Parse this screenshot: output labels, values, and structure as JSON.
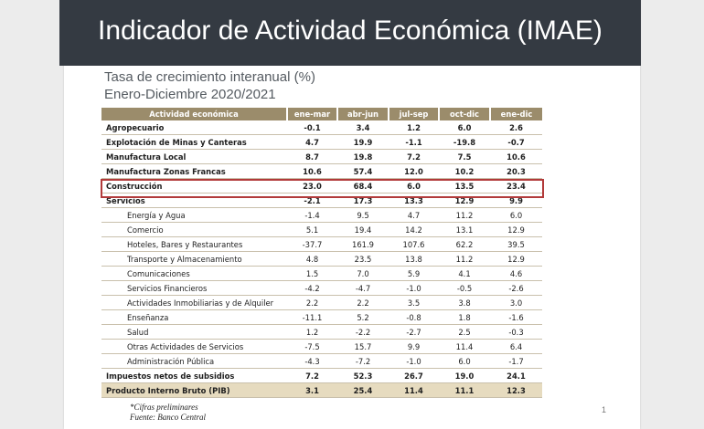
{
  "title": "Indicador de Actividad Económica (IMAE)",
  "subtitle_1": "Tasa de crecimiento interanual (%)",
  "subtitle_2": "Enero-Diciembre 2020/2021",
  "table": {
    "headers": [
      "Actividad económica",
      "ene-mar",
      "abr-jun",
      "jul-sep",
      "oct-dic",
      "ene-dic"
    ],
    "rows": [
      {
        "label": "Agropecuario",
        "values": [
          "-0.1",
          "3.4",
          "1.2",
          "6.0",
          "2.6"
        ],
        "style": "bold"
      },
      {
        "label": "Explotación de Minas y Canteras",
        "values": [
          "4.7",
          "19.9",
          "-1.1",
          "-19.8",
          "-0.7"
        ],
        "style": "bold"
      },
      {
        "label": "Manufactura Local",
        "values": [
          "8.7",
          "19.8",
          "7.2",
          "7.5",
          "10.6"
        ],
        "style": "bold"
      },
      {
        "label": "Manufactura Zonas Francas",
        "values": [
          "10.6",
          "57.4",
          "12.0",
          "10.2",
          "20.3"
        ],
        "style": "bold"
      },
      {
        "label": "Construcción",
        "values": [
          "23.0",
          "68.4",
          "6.0",
          "13.5",
          "23.4"
        ],
        "style": "bold",
        "highlighted": true
      },
      {
        "label": "Servicios",
        "values": [
          "-2.1",
          "17.3",
          "13.3",
          "12.9",
          "9.9"
        ],
        "style": "bold"
      },
      {
        "label": "Energía y Agua",
        "values": [
          "-1.4",
          "9.5",
          "4.7",
          "11.2",
          "6.0"
        ],
        "style": "sub"
      },
      {
        "label": "Comercio",
        "values": [
          "5.1",
          "19.4",
          "14.2",
          "13.1",
          "12.9"
        ],
        "style": "sub"
      },
      {
        "label": "Hoteles, Bares y Restaurantes",
        "values": [
          "-37.7",
          "161.9",
          "107.6",
          "62.2",
          "39.5"
        ],
        "style": "sub"
      },
      {
        "label": "Transporte y Almacenamiento",
        "values": [
          "4.8",
          "23.5",
          "13.8",
          "11.2",
          "12.9"
        ],
        "style": "sub"
      },
      {
        "label": "Comunicaciones",
        "values": [
          "1.5",
          "7.0",
          "5.9",
          "4.1",
          "4.6"
        ],
        "style": "sub"
      },
      {
        "label": "Servicios Financieros",
        "values": [
          "-4.2",
          "-4.7",
          "-1.0",
          "-0.5",
          "-2.6"
        ],
        "style": "sub"
      },
      {
        "label": "Actividades Inmobiliarias y de Alquiler",
        "values": [
          "2.2",
          "2.2",
          "3.5",
          "3.8",
          "3.0"
        ],
        "style": "sub"
      },
      {
        "label": "Enseñanza",
        "values": [
          "-11.1",
          "5.2",
          "-0.8",
          "1.8",
          "-1.6"
        ],
        "style": "sub"
      },
      {
        "label": "Salud",
        "values": [
          "1.2",
          "-2.2",
          "-2.7",
          "2.5",
          "-0.3"
        ],
        "style": "sub"
      },
      {
        "label": "Otras Actividades de Servicios",
        "values": [
          "-7.5",
          "15.7",
          "9.9",
          "11.4",
          "6.4"
        ],
        "style": "sub"
      },
      {
        "label": "Administración Pública",
        "values": [
          "-4.3",
          "-7.2",
          "-1.0",
          "6.0",
          "-1.7"
        ],
        "style": "sub"
      },
      {
        "label": "Impuestos netos de subsidios",
        "values": [
          "7.2",
          "52.3",
          "26.7",
          "19.0",
          "24.1"
        ],
        "style": "bold"
      },
      {
        "label": "Producto Interno Bruto (PIB)",
        "values": [
          "3.1",
          "25.4",
          "11.4",
          "11.1",
          "12.3"
        ],
        "style": "total"
      }
    ]
  },
  "footnote_1": "*Cifras preliminares",
  "footnote_2": "Fuente: Banco Central",
  "page_number": "1",
  "colors": {
    "banner": "#343a42",
    "header": "#9b8c6b",
    "total_row": "#e6dbbf",
    "highlight_border": "#b23a3a"
  }
}
